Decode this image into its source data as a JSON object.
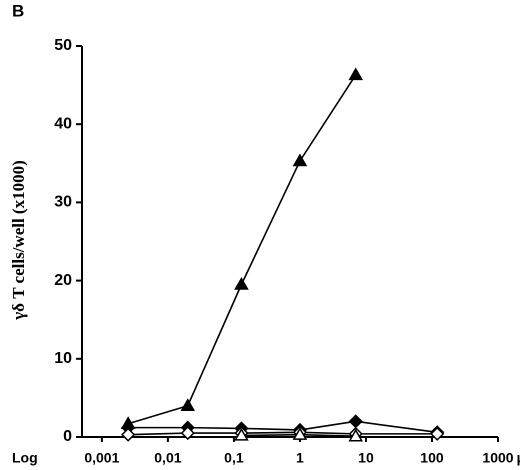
{
  "chart_data": {
    "type": "line",
    "panel_label": "B",
    "y_label": "γδ T    cells/well    (x1000)",
    "x_label_prefix": "Log",
    "x_label": "µmol/L",
    "xscale": "log",
    "xlim": [
      0.0005,
      1000
    ],
    "xticks": [
      {
        "value": 0.001,
        "label": "0,001"
      },
      {
        "value": 0.01,
        "label": "0,01"
      },
      {
        "value": 0.1,
        "label": "0,1"
      },
      1,
      10,
      100,
      1000
    ],
    "ylim": [
      0,
      50
    ],
    "yticks": [
      0,
      10,
      20,
      30,
      40,
      50
    ],
    "series": [
      {
        "marker": "triangle",
        "filled": true,
        "color": "#000000",
        "x": [
          0.0025,
          0.02,
          0.13,
          1,
          7
        ],
        "values": [
          1.7,
          4,
          19.5,
          35.3,
          46.3
        ]
      },
      {
        "marker": "diamond",
        "filled": true,
        "color": "#000000",
        "x": [
          0.0025,
          0.02,
          0.13,
          1,
          7,
          120
        ],
        "values": [
          1.2,
          1.2,
          1.1,
          0.9,
          2.0,
          0.6
        ]
      },
      {
        "marker": "diamond",
        "filled": false,
        "color": "#000000",
        "x": [
          0.0025,
          0.02,
          0.13,
          1,
          7,
          120
        ],
        "values": [
          0.3,
          0.5,
          0.5,
          0.6,
          0.4,
          0.4
        ]
      },
      {
        "marker": "triangle",
        "filled": false,
        "color": "#000000",
        "x": [
          0.13,
          1,
          7
        ],
        "values": [
          0.2,
          0.3,
          0.1
        ]
      }
    ]
  }
}
